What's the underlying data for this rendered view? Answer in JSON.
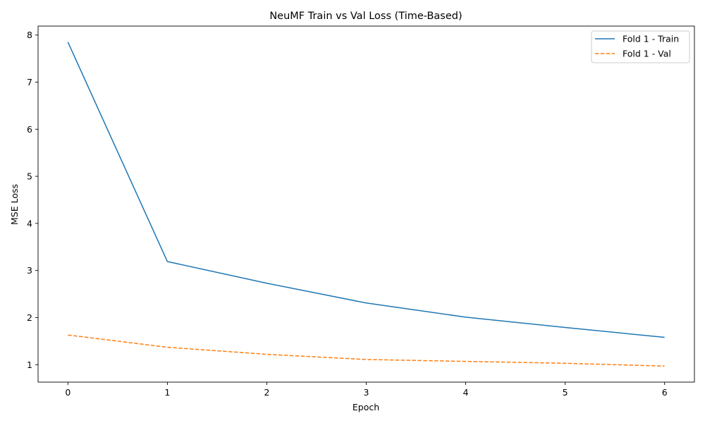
{
  "chart_data": {
    "type": "line",
    "title": "NeuMF Train vs Val Loss (Time-Based)",
    "xlabel": "Epoch",
    "ylabel": "MSE Loss",
    "x": [
      0,
      1,
      2,
      3,
      4,
      5,
      6
    ],
    "xlim": [
      -0.3,
      6.3
    ],
    "ylim": [
      0.63,
      8.19
    ],
    "xticks": [
      0,
      1,
      2,
      3,
      4,
      5,
      6
    ],
    "yticks": [
      1,
      2,
      3,
      4,
      5,
      6,
      7,
      8
    ],
    "grid": false,
    "legend_position": "top-right",
    "series": [
      {
        "name": "Fold 1 - Train",
        "values": [
          7.85,
          3.19,
          2.73,
          2.31,
          2.01,
          1.79,
          1.58
        ],
        "color": "#1f77b4",
        "style": "solid"
      },
      {
        "name": "Fold 1 - Val",
        "values": [
          1.63,
          1.37,
          1.22,
          1.11,
          1.07,
          1.03,
          0.97
        ],
        "color": "#ff7f0e",
        "style": "dashed"
      }
    ]
  }
}
